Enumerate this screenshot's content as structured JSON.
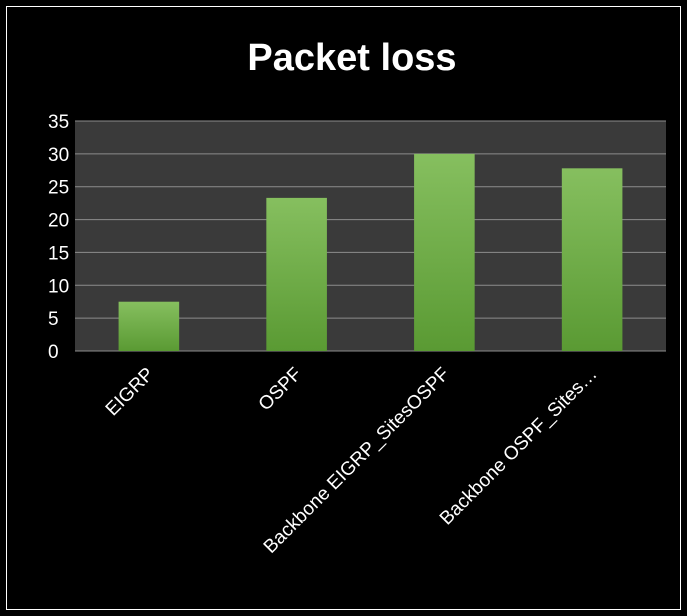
{
  "chart_data": {
    "type": "bar",
    "title": "Packet loss",
    "categories": [
      "EIGRP",
      "OSPF",
      "Backbone EIGRP_SitesOSPF",
      "Backbone OSPF_Sites…"
    ],
    "values": [
      7.5,
      23.3,
      30,
      27.8
    ],
    "ylim": [
      0,
      35
    ],
    "yticks": [
      0,
      5,
      10,
      15,
      20,
      25,
      30,
      35
    ],
    "grid": true,
    "legend": "none",
    "colors": {
      "background": "#000000",
      "plot_area": "#3a3a3a",
      "gridline": "#8c8c8c",
      "bar_top": "#86bf5f",
      "bar_bottom": "#5a9a33",
      "text": "#ffffff"
    }
  }
}
